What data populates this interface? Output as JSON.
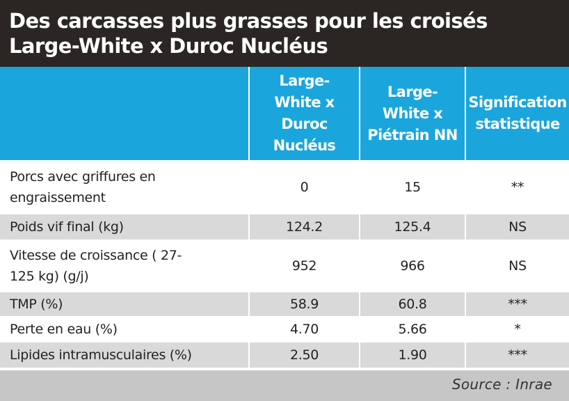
{
  "title": "Des carcasses plus grasses pour les croisés Large-White x Duroc Nucléus",
  "columns": [
    "",
    "Large-White x Duroc Nucléus",
    "Large-White x Piétrain NN",
    "Signification statistique"
  ],
  "rows": [
    {
      "label": "Porcs avec griffures en engraissement",
      "v1": "0",
      "v2": "15",
      "sig": "**"
    },
    {
      "label": "Poids vif final (kg)",
      "v1": "124.2",
      "v2": "125.4",
      "sig": "NS"
    },
    {
      "label": "Vitesse de croissance ( 27-125 kg) (g/j)",
      "v1": "952",
      "v2": "966",
      "sig": "NS"
    },
    {
      "label": "TMP (%)",
      "v1": "58.9",
      "v2": "60.8",
      "sig": "***"
    },
    {
      "label": "Perte en eau (%)",
      "v1": "4.70",
      "v2": "5.66",
      "sig": "*"
    },
    {
      "label": "Lipides intramusculaires (%)",
      "v1": "2.50",
      "v2": "1.90",
      "sig": "***"
    }
  ],
  "source": "Source : Inrae",
  "colors": {
    "title_bg": "#2b2623",
    "header_bg": "#1aa5dd",
    "row_shade": "#d9d9d9",
    "footer_bg": "#c6c6c6"
  }
}
